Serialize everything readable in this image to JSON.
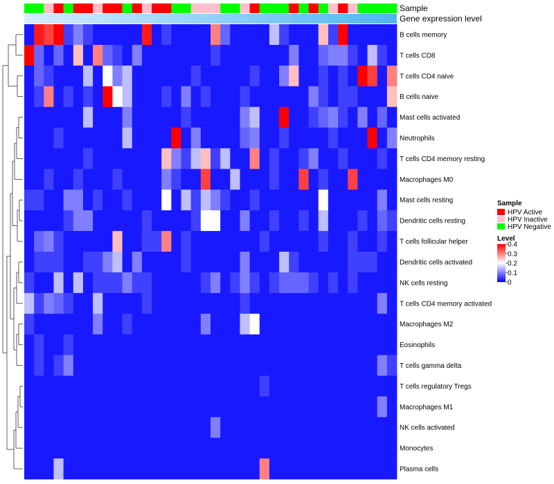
{
  "chart_data": {
    "type": "heatmap",
    "title": "",
    "annotations": {
      "sample_label": "Sample",
      "gene_label": "Gene expression level"
    },
    "rows": [
      "B cells memory",
      "T cells CD8",
      "T cells CD4 naive",
      "B cells naive",
      "Mast cells activated",
      "Neutrophils",
      "T cells CD4 memory resting",
      "Macrophages M0",
      "Mast cells resting",
      "Dendritic cells resting",
      "T cells follicular helper",
      "Dendritic cells activated",
      "NK cells resting",
      "T cells CD4 memory activated",
      "Macrophages M2",
      "Eosinophils",
      "T cells gamma delta",
      "T cells regulatory  Tregs",
      "Macrophages M1",
      "NK cells activated",
      "Monocytes",
      "Plasma cells"
    ],
    "sample_groups": [
      "Negative",
      "Negative",
      "Inactive",
      "Active",
      "Negative",
      "Active",
      "Active",
      "Inactive",
      "Active",
      "Active",
      "Negative",
      "Active",
      "Inactive",
      "Active",
      "Active",
      "Negative",
      "Negative",
      "Inactive",
      "Inactive",
      "Inactive",
      "Negative",
      "Negative",
      "Inactive",
      "Active",
      "Negative",
      "Negative",
      "Negative",
      "Active",
      "Negative",
      "Active",
      "Negative",
      "Inactive",
      "Active",
      "Inactive",
      "Negative",
      "Negative",
      "Negative",
      "Negative"
    ],
    "values": [
      [
        0.02,
        0.38,
        0.35,
        0.4,
        0.05,
        0.1,
        0.05,
        0.02,
        0.02,
        0.02,
        0.02,
        0.02,
        0.38,
        0.02,
        0.05,
        0.02,
        0.02,
        0.02,
        0.02,
        0.3,
        0.08,
        0.02,
        0.02,
        0.02,
        0.02,
        0.15,
        0.05,
        0.02,
        0.02,
        0.02,
        0.25,
        0.05,
        0.4,
        0.02,
        0.02,
        0.02,
        0.02,
        0.02
      ],
      [
        0.4,
        0.08,
        0.02,
        0.08,
        0.02,
        0.25,
        0.02,
        0.3,
        0.08,
        0.05,
        0.02,
        0.1,
        0.02,
        0.02,
        0.02,
        0.02,
        0.02,
        0.02,
        0.02,
        0.05,
        0.02,
        0.02,
        0.02,
        0.02,
        0.02,
        0.02,
        0.02,
        0.1,
        0.02,
        0.02,
        0.08,
        0.1,
        0.1,
        0.05,
        0.02,
        0.15,
        0.05,
        0.02
      ],
      [
        0.02,
        0.08,
        0.05,
        0.02,
        0.02,
        0.02,
        0.15,
        0.02,
        0.2,
        0.1,
        0.15,
        0.02,
        0.02,
        0.02,
        0.02,
        0.02,
        0.02,
        0.05,
        0.02,
        0.02,
        0.02,
        0.02,
        0.02,
        0.05,
        0.02,
        0.02,
        0.1,
        0.25,
        0.02,
        0.02,
        0.05,
        0.02,
        0.05,
        0.02,
        0.4,
        0.35,
        0.02,
        0.3
      ],
      [
        0.02,
        0.05,
        0.3,
        0.02,
        0.05,
        0.02,
        0.05,
        0.02,
        0.4,
        0.2,
        0.15,
        0.02,
        0.02,
        0.02,
        0.05,
        0.02,
        0.1,
        0.02,
        0.05,
        0.02,
        0.02,
        0.02,
        0.05,
        0.02,
        0.02,
        0.02,
        0.02,
        0.02,
        0.02,
        0.1,
        0.05,
        0.02,
        0.05,
        0.05,
        0.02,
        0.02,
        0.02,
        0.25
      ],
      [
        0.02,
        0.02,
        0.02,
        0.02,
        0.02,
        0.02,
        0.15,
        0.02,
        0.02,
        0.02,
        0.1,
        0.02,
        0.02,
        0.02,
        0.02,
        0.02,
        0.05,
        0.02,
        0.02,
        0.02,
        0.02,
        0.02,
        0.1,
        0.15,
        0.02,
        0.02,
        0.4,
        0.02,
        0.02,
        0.05,
        0.08,
        0.1,
        0.05,
        0.02,
        0.1,
        0.02,
        0.08,
        0.02
      ],
      [
        0.02,
        0.02,
        0.02,
        0.05,
        0.02,
        0.02,
        0.02,
        0.02,
        0.02,
        0.02,
        0.15,
        0.02,
        0.02,
        0.02,
        0.02,
        0.4,
        0.02,
        0.1,
        0.02,
        0.02,
        0.02,
        0.02,
        0.08,
        0.1,
        0.02,
        0.02,
        0.05,
        0.02,
        0.02,
        0.02,
        0.02,
        0.05,
        0.02,
        0.02,
        0.02,
        0.4,
        0.02,
        0.1
      ],
      [
        0.02,
        0.02,
        0.02,
        0.02,
        0.02,
        0.02,
        0.05,
        0.02,
        0.02,
        0.02,
        0.02,
        0.02,
        0.02,
        0.02,
        0.25,
        0.1,
        0.05,
        0.15,
        0.25,
        0.05,
        0.15,
        0.02,
        0.02,
        0.3,
        0.02,
        0.05,
        0.02,
        0.02,
        0.05,
        0.1,
        0.02,
        0.02,
        0.05,
        0.02,
        0.02,
        0.02,
        0.05,
        0.02
      ],
      [
        0.02,
        0.02,
        0.05,
        0.02,
        0.02,
        0.05,
        0.02,
        0.02,
        0.02,
        0.05,
        0.02,
        0.02,
        0.02,
        0.02,
        0.1,
        0.05,
        0.02,
        0.02,
        0.35,
        0.02,
        0.02,
        0.15,
        0.02,
        0.02,
        0.02,
        0.05,
        0.02,
        0.02,
        0.35,
        0.02,
        0.05,
        0.02,
        0.02,
        0.35,
        0.02,
        0.02,
        0.02,
        0.02
      ],
      [
        0.05,
        0.05,
        0.02,
        0.02,
        0.1,
        0.1,
        0.02,
        0.05,
        0.02,
        0.02,
        0.05,
        0.02,
        0.02,
        0.02,
        0.2,
        0.02,
        0.15,
        0.05,
        0.15,
        0.1,
        0.05,
        0.02,
        0.02,
        0.05,
        0.02,
        0.02,
        0.02,
        0.02,
        0.02,
        0.02,
        0.2,
        0.02,
        0.02,
        0.02,
        0.02,
        0.02,
        0.1,
        0.02
      ],
      [
        0.02,
        0.02,
        0.02,
        0.02,
        0.05,
        0.1,
        0.1,
        0.02,
        0.02,
        0.02,
        0.02,
        0.02,
        0.05,
        0.02,
        0.02,
        0.02,
        0.02,
        0.05,
        0.2,
        0.2,
        0.02,
        0.02,
        0.1,
        0.02,
        0.02,
        0.05,
        0.02,
        0.02,
        0.05,
        0.02,
        0.15,
        0.02,
        0.02,
        0.02,
        0.05,
        0.02,
        0.08,
        0.05
      ],
      [
        0.02,
        0.08,
        0.1,
        0.05,
        0.02,
        0.02,
        0.02,
        0.02,
        0.02,
        0.25,
        0.02,
        0.02,
        0.05,
        0.05,
        0.3,
        0.02,
        0.05,
        0.02,
        0.02,
        0.02,
        0.02,
        0.02,
        0.02,
        0.02,
        0.05,
        0.02,
        0.02,
        0.02,
        0.02,
        0.02,
        0.05,
        0.02,
        0.02,
        0.05,
        0.02,
        0.02,
        0.05,
        0.02
      ],
      [
        0.02,
        0.05,
        0.05,
        0.05,
        0.02,
        0.02,
        0.05,
        0.05,
        0.1,
        0.15,
        0.02,
        0.1,
        0.02,
        0.02,
        0.02,
        0.02,
        0.05,
        0.02,
        0.02,
        0.02,
        0.02,
        0.02,
        0.1,
        0.02,
        0.02,
        0.02,
        0.15,
        0.05,
        0.02,
        0.02,
        0.02,
        0.02,
        0.02,
        0.05,
        0.05,
        0.05,
        0.02,
        0.02
      ],
      [
        0.05,
        0.02,
        0.02,
        0.15,
        0.02,
        0.15,
        0.02,
        0.05,
        0.05,
        0.05,
        0.1,
        0.05,
        0.05,
        0.02,
        0.02,
        0.02,
        0.02,
        0.02,
        0.05,
        0.1,
        0.02,
        0.05,
        0.1,
        0.05,
        0.02,
        0.05,
        0.08,
        0.08,
        0.08,
        0.05,
        0.02,
        0.05,
        0.02,
        0.05,
        0.02,
        0.02,
        0.02,
        0.02
      ],
      [
        0.15,
        0.05,
        0.1,
        0.08,
        0.05,
        0.02,
        0.02,
        0.15,
        0.02,
        0.02,
        0.02,
        0.02,
        0.05,
        0.02,
        0.02,
        0.02,
        0.02,
        0.02,
        0.02,
        0.02,
        0.02,
        0.02,
        0.05,
        0.02,
        0.02,
        0.02,
        0.02,
        0.02,
        0.02,
        0.02,
        0.02,
        0.02,
        0.02,
        0.02,
        0.02,
        0.02,
        0.1,
        0.02
      ],
      [
        0.05,
        0.02,
        0.02,
        0.02,
        0.02,
        0.02,
        0.02,
        0.1,
        0.02,
        0.02,
        0.05,
        0.02,
        0.02,
        0.02,
        0.02,
        0.02,
        0.02,
        0.02,
        0.1,
        0.02,
        0.02,
        0.02,
        0.15,
        0.2,
        0.02,
        0.02,
        0.02,
        0.02,
        0.02,
        0.02,
        0.02,
        0.02,
        0.02,
        0.02,
        0.02,
        0.02,
        0.02,
        0.02
      ],
      [
        0.02,
        0.05,
        0.02,
        0.02,
        0.05,
        0.02,
        0.02,
        0.02,
        0.02,
        0.02,
        0.02,
        0.02,
        0.02,
        0.02,
        0.02,
        0.02,
        0.02,
        0.02,
        0.02,
        0.02,
        0.02,
        0.02,
        0.02,
        0.02,
        0.02,
        0.02,
        0.02,
        0.02,
        0.02,
        0.02,
        0.02,
        0.02,
        0.02,
        0.02,
        0.02,
        0.02,
        0.02,
        0.02
      ],
      [
        0.02,
        0.05,
        0.02,
        0.05,
        0.1,
        0.02,
        0.02,
        0.02,
        0.02,
        0.02,
        0.02,
        0.02,
        0.02,
        0.02,
        0.02,
        0.02,
        0.02,
        0.02,
        0.02,
        0.02,
        0.02,
        0.02,
        0.02,
        0.02,
        0.02,
        0.02,
        0.02,
        0.02,
        0.02,
        0.02,
        0.02,
        0.02,
        0.02,
        0.02,
        0.02,
        0.02,
        0.1,
        0.05
      ],
      [
        0.02,
        0.02,
        0.02,
        0.02,
        0.02,
        0.02,
        0.02,
        0.02,
        0.02,
        0.02,
        0.02,
        0.02,
        0.02,
        0.02,
        0.02,
        0.02,
        0.02,
        0.02,
        0.02,
        0.02,
        0.02,
        0.02,
        0.02,
        0.02,
        0.05,
        0.02,
        0.02,
        0.02,
        0.02,
        0.02,
        0.02,
        0.02,
        0.02,
        0.02,
        0.02,
        0.02,
        0.02,
        0.02
      ],
      [
        0.02,
        0.02,
        0.02,
        0.02,
        0.02,
        0.02,
        0.02,
        0.02,
        0.02,
        0.02,
        0.02,
        0.02,
        0.02,
        0.02,
        0.02,
        0.02,
        0.02,
        0.02,
        0.02,
        0.02,
        0.02,
        0.02,
        0.02,
        0.02,
        0.02,
        0.02,
        0.02,
        0.02,
        0.02,
        0.02,
        0.02,
        0.02,
        0.02,
        0.02,
        0.02,
        0.02,
        0.1,
        0.02
      ],
      [
        0.02,
        0.02,
        0.02,
        0.02,
        0.02,
        0.02,
        0.02,
        0.02,
        0.02,
        0.02,
        0.02,
        0.02,
        0.02,
        0.02,
        0.02,
        0.02,
        0.02,
        0.02,
        0.02,
        0.1,
        0.02,
        0.02,
        0.02,
        0.02,
        0.02,
        0.02,
        0.02,
        0.02,
        0.02,
        0.02,
        0.02,
        0.02,
        0.02,
        0.02,
        0.02,
        0.02,
        0.02,
        0.02
      ],
      [
        0.02,
        0.02,
        0.02,
        0.02,
        0.02,
        0.02,
        0.02,
        0.02,
        0.02,
        0.02,
        0.02,
        0.02,
        0.02,
        0.02,
        0.02,
        0.02,
        0.02,
        0.02,
        0.02,
        0.02,
        0.02,
        0.02,
        0.02,
        0.02,
        0.02,
        0.02,
        0.02,
        0.02,
        0.02,
        0.02,
        0.02,
        0.02,
        0.02,
        0.02,
        0.02,
        0.02,
        0.02,
        0.02
      ],
      [
        0.02,
        0.02,
        0.02,
        0.15,
        0.02,
        0.02,
        0.02,
        0.02,
        0.02,
        0.02,
        0.02,
        0.02,
        0.02,
        0.02,
        0.02,
        0.02,
        0.02,
        0.02,
        0.02,
        0.02,
        0.02,
        0.02,
        0.02,
        0.02,
        0.3,
        0.02,
        0.02,
        0.02,
        0.02,
        0.02,
        0.02,
        0.02,
        0.02,
        0.02,
        0.02,
        0.02,
        0.02,
        0.02
      ]
    ],
    "legend_sample": {
      "title": "Sample",
      "entries": [
        {
          "key": "Active",
          "label": "HPV Active",
          "color": "#ff0000"
        },
        {
          "key": "Inactive",
          "label": "HPV Inactive",
          "color": "#ffc0cb"
        },
        {
          "key": "Negative",
          "label": "HPV Negative",
          "color": "#00ff00"
        }
      ]
    },
    "legend_level": {
      "title": "Level",
      "ticks": [
        {
          "value": 0.4,
          "label": "0.4"
        },
        {
          "value": 0.3,
          "label": "0.3"
        },
        {
          "value": 0.2,
          "label": "0.2"
        },
        {
          "value": 0.1,
          "label": "0.1"
        },
        {
          "value": 0,
          "label": "0"
        }
      ],
      "range": [
        0,
        0.4
      ]
    },
    "colors": {
      "low": "#0000ff",
      "mid": "#ffffff",
      "high": "#ff0000",
      "gene_start": "#d6ecff",
      "gene_end": "#4eb6f0"
    }
  }
}
